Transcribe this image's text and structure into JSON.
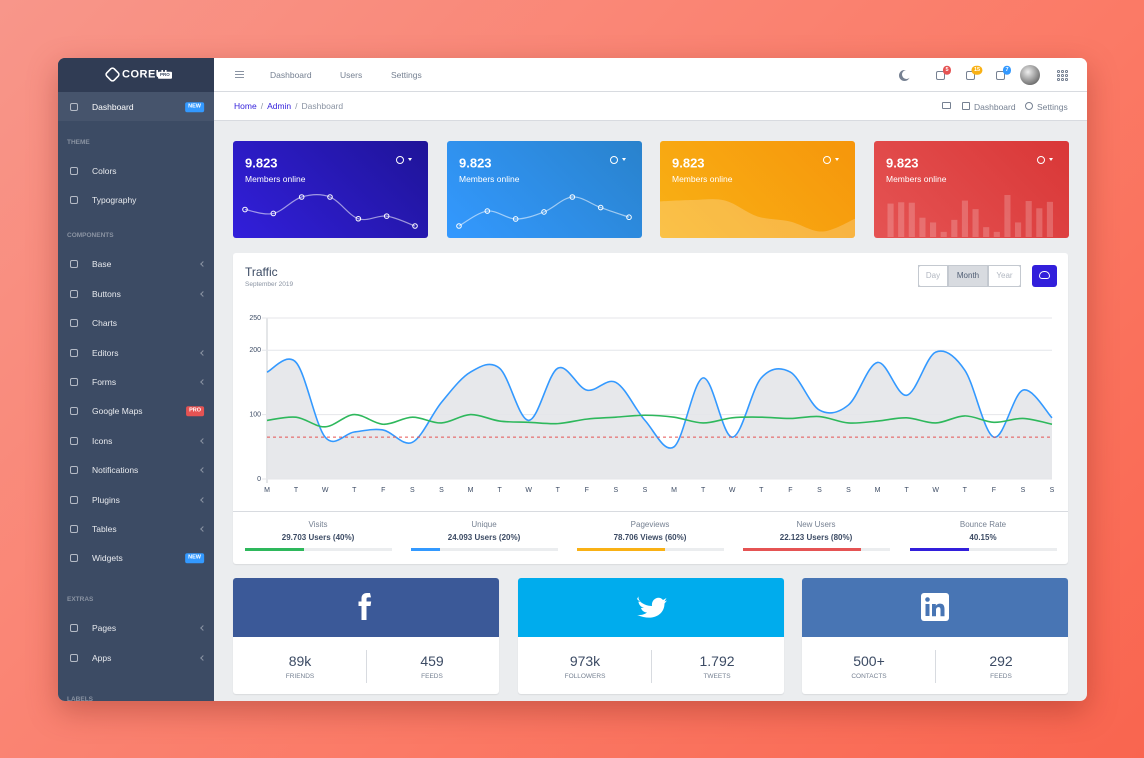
{
  "sidebar": {
    "brand": "COREUI",
    "brand_badge": "PRO",
    "top_item": {
      "label": "Dashboard",
      "badge": "NEW",
      "badge_color": "#39f"
    },
    "sections": [
      {
        "title": "THEME",
        "items": [
          {
            "label": "Colors"
          },
          {
            "label": "Typography"
          }
        ]
      },
      {
        "title": "COMPONENTS",
        "items": [
          {
            "label": "Base",
            "submenu": true
          },
          {
            "label": "Buttons",
            "submenu": true
          },
          {
            "label": "Charts"
          },
          {
            "label": "Editors",
            "submenu": true
          },
          {
            "label": "Forms",
            "submenu": true
          },
          {
            "label": "Google Maps",
            "badge": "PRO",
            "badge_color": "#e55353"
          },
          {
            "label": "Icons",
            "submenu": true
          },
          {
            "label": "Notifications",
            "submenu": true
          },
          {
            "label": "Plugins",
            "submenu": true
          },
          {
            "label": "Tables",
            "submenu": true
          },
          {
            "label": "Widgets",
            "badge": "NEW",
            "badge_color": "#39f"
          }
        ]
      },
      {
        "title": "EXTRAS",
        "items": [
          {
            "label": "Pages",
            "submenu": true
          },
          {
            "label": "Apps",
            "submenu": true
          }
        ]
      },
      {
        "title": "LABELS",
        "items": []
      }
    ]
  },
  "header": {
    "nav": [
      "Dashboard",
      "Users",
      "Settings"
    ],
    "notifications": [
      {
        "count": 5,
        "color": "#e55353"
      },
      {
        "count": 15,
        "color": "#f9b115"
      },
      {
        "count": 7,
        "color": "#39f"
      }
    ]
  },
  "breadcrumb": {
    "items": [
      "Home",
      "Admin",
      "Dashboard"
    ],
    "separator": "/",
    "actions": [
      "Dashboard",
      "Settings"
    ]
  },
  "widgets": [
    {
      "value": "9.823",
      "label": "Members online",
      "type": "line",
      "color": "linear-gradient(45deg,#321fdb,#1f1498)",
      "values": [
        65,
        59,
        84,
        84,
        51,
        55,
        40
      ]
    },
    {
      "value": "9.823",
      "label": "Members online",
      "type": "line",
      "color": "linear-gradient(45deg,#39f,#2982cc)",
      "values": [
        1,
        18,
        9,
        17,
        34,
        22,
        11
      ]
    },
    {
      "value": "9.823",
      "label": "Members online",
      "type": "area",
      "color": "linear-gradient(45deg,#f9b115,#f6960b)",
      "values": [
        78,
        81,
        80,
        45,
        34,
        12,
        40
      ]
    },
    {
      "value": "9.823",
      "label": "Members online",
      "type": "bar",
      "color": "linear-gradient(45deg,#e55353,#d93737)",
      "values": [
        78,
        81,
        80,
        45,
        34,
        12,
        40,
        85,
        65,
        23,
        12,
        98,
        34,
        84,
        67,
        82
      ]
    }
  ],
  "chart_data": {
    "type": "line",
    "title": "Traffic",
    "subtitle": "September 2019",
    "categories": [
      "M",
      "T",
      "W",
      "T",
      "F",
      "S",
      "S",
      "M",
      "T",
      "W",
      "T",
      "F",
      "S",
      "S",
      "M",
      "T",
      "W",
      "T",
      "F",
      "S",
      "S",
      "M",
      "T",
      "W",
      "T",
      "F",
      "S",
      "S"
    ],
    "series": [
      {
        "color": "#39f",
        "fill": "#e4e5e9",
        "values": [
          166,
          181,
          65,
          73,
          76,
          57,
          119,
          166,
          172,
          91,
          172,
          138,
          150,
          91,
          50,
          157,
          65,
          157,
          166,
          107,
          115,
          181,
          130,
          197,
          169,
          65,
          138,
          95
        ]
      },
      {
        "color": "#2eb85c",
        "values": [
          91,
          96,
          81,
          100,
          85,
          96,
          87,
          100,
          90,
          88,
          86,
          93,
          96,
          99,
          96,
          87,
          95,
          96,
          94,
          97,
          87,
          90,
          95,
          87,
          98,
          88,
          94,
          85
        ]
      },
      {
        "color": "#e55353",
        "dashed": true,
        "values": [
          65,
          65,
          65,
          65,
          65,
          65,
          65,
          65,
          65,
          65,
          65,
          65,
          65,
          65,
          65,
          65,
          65,
          65,
          65,
          65,
          65,
          65,
          65,
          65,
          65,
          65,
          65,
          65
        ]
      }
    ],
    "ylim": [
      0,
      250
    ],
    "yticks": [
      0,
      100,
      200,
      250
    ],
    "grid": true
  },
  "traffic_controls": {
    "buttons": [
      "Day",
      "Month",
      "Year"
    ],
    "active": 1
  },
  "traffic_stats": [
    {
      "label": "Visits",
      "value": "29.703 Users (40%)",
      "progress": 40,
      "color": "#2eb85c"
    },
    {
      "label": "Unique",
      "value": "24.093 Users (20%)",
      "progress": 20,
      "color": "#39f"
    },
    {
      "label": "Pageviews",
      "value": "78.706 Views (60%)",
      "progress": 60,
      "color": "#f9b115"
    },
    {
      "label": "New Users",
      "value": "22.123 Users (80%)",
      "progress": 80,
      "color": "#e55353"
    },
    {
      "label": "Bounce Rate",
      "value": "40.15%",
      "progress": 40.15,
      "color": "#321fdb"
    }
  ],
  "social": [
    {
      "icon": "facebook",
      "color": "#3b5998",
      "stats": [
        {
          "value": "89k",
          "label": "FRIENDS"
        },
        {
          "value": "459",
          "label": "FEEDS"
        }
      ]
    },
    {
      "icon": "twitter",
      "color": "#00aced",
      "stats": [
        {
          "value": "973k",
          "label": "FOLLOWERS"
        },
        {
          "value": "1.792",
          "label": "TWEETS"
        }
      ]
    },
    {
      "icon": "linkedin",
      "color": "#4875b4",
      "stats": [
        {
          "value": "500+",
          "label": "CONTACTS"
        },
        {
          "value": "292",
          "label": "FEEDS"
        }
      ]
    }
  ]
}
